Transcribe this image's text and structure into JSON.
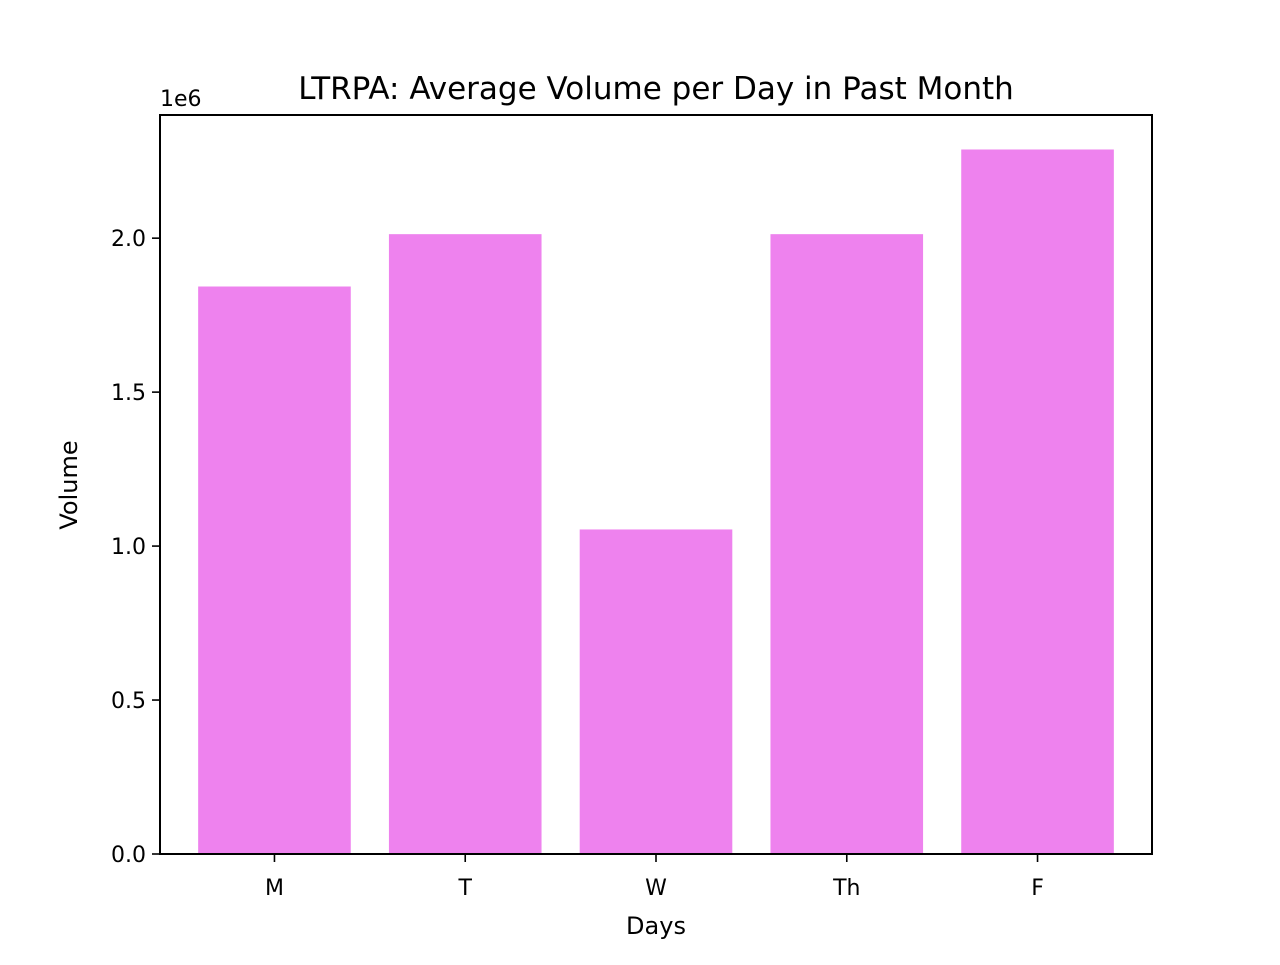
{
  "chart_data": {
    "type": "bar",
    "title": "LTRPA: Average Volume per Day in Past Month",
    "xlabel": "Days",
    "ylabel": "Volume",
    "y_offset_label": "1e6",
    "categories": [
      "M",
      "T",
      "W",
      "Th",
      "F"
    ],
    "values": [
      1843000,
      2013000,
      1054000,
      2013000,
      2288000
    ],
    "ylim": [
      0,
      2400000
    ],
    "yticks": [
      0,
      500000,
      1000000,
      1500000,
      2000000
    ],
    "ytick_labels": [
      "0.0",
      "0.5",
      "1.0",
      "1.5",
      "2.0"
    ],
    "bar_color": "#ee82ee",
    "grid": false,
    "legend": "none"
  }
}
